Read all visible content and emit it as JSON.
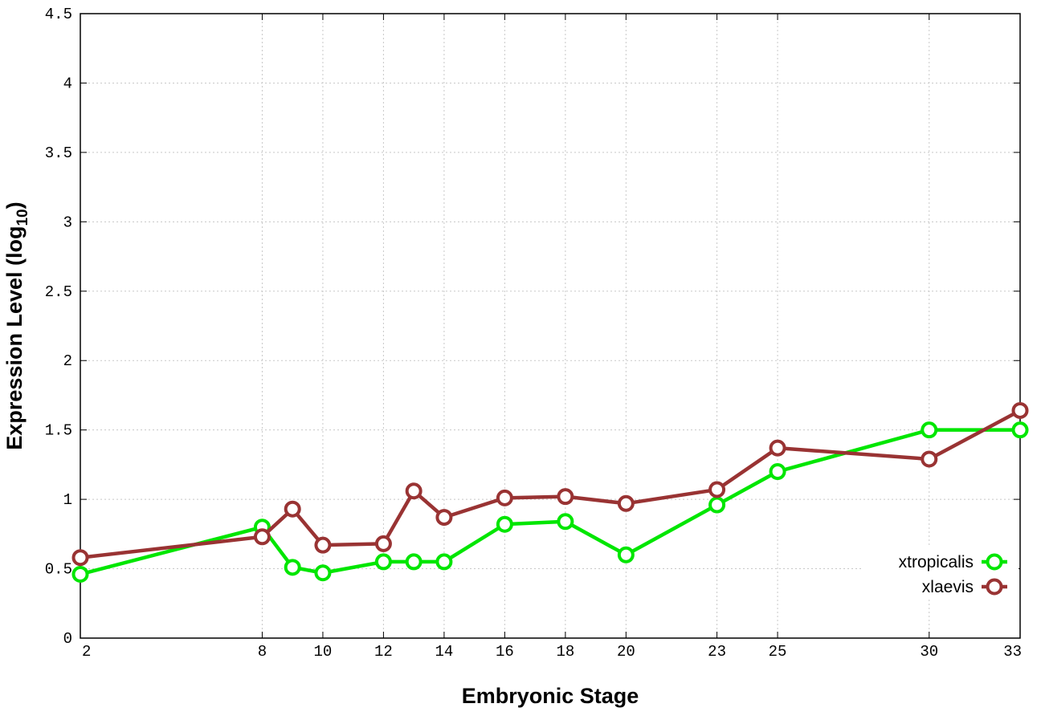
{
  "chart_data": {
    "type": "line",
    "title": "",
    "xlabel": "Embryonic Stage",
    "ylabel_main": "Expression Level (log",
    "ylabel_sub": "10",
    "ylabel_close": ")",
    "x_ticks": [
      2,
      8,
      10,
      12,
      14,
      16,
      18,
      20,
      23,
      25,
      30,
      33
    ],
    "y_ticks": [
      "0",
      "0.5",
      "1",
      "1.5",
      "2",
      "2.5",
      "3",
      "3.5",
      "4",
      "4.5"
    ],
    "ylim": [
      0,
      4.5
    ],
    "grid": true,
    "legend_position": "bottom-right",
    "series": [
      {
        "name": "xtropicalis",
        "color": "#00e600",
        "points": [
          [
            2,
            0.46
          ],
          [
            8,
            0.8
          ],
          [
            9,
            0.51
          ],
          [
            10,
            0.47
          ],
          [
            12,
            0.55
          ],
          [
            13,
            0.55
          ],
          [
            14,
            0.55
          ],
          [
            16,
            0.82
          ],
          [
            18,
            0.84
          ],
          [
            20,
            0.6
          ],
          [
            23,
            0.96
          ],
          [
            25,
            1.2
          ],
          [
            30,
            1.5
          ],
          [
            33,
            1.5
          ]
        ]
      },
      {
        "name": "xlaevis",
        "color": "#993333",
        "points": [
          [
            2,
            0.58
          ],
          [
            8,
            0.73
          ],
          [
            9,
            0.93
          ],
          [
            10,
            0.67
          ],
          [
            12,
            0.68
          ],
          [
            13,
            1.06
          ],
          [
            14,
            0.87
          ],
          [
            16,
            1.01
          ],
          [
            18,
            1.02
          ],
          [
            20,
            0.97
          ],
          [
            23,
            1.07
          ],
          [
            25,
            1.37
          ],
          [
            30,
            1.29
          ],
          [
            33,
            1.64
          ]
        ]
      }
    ]
  }
}
